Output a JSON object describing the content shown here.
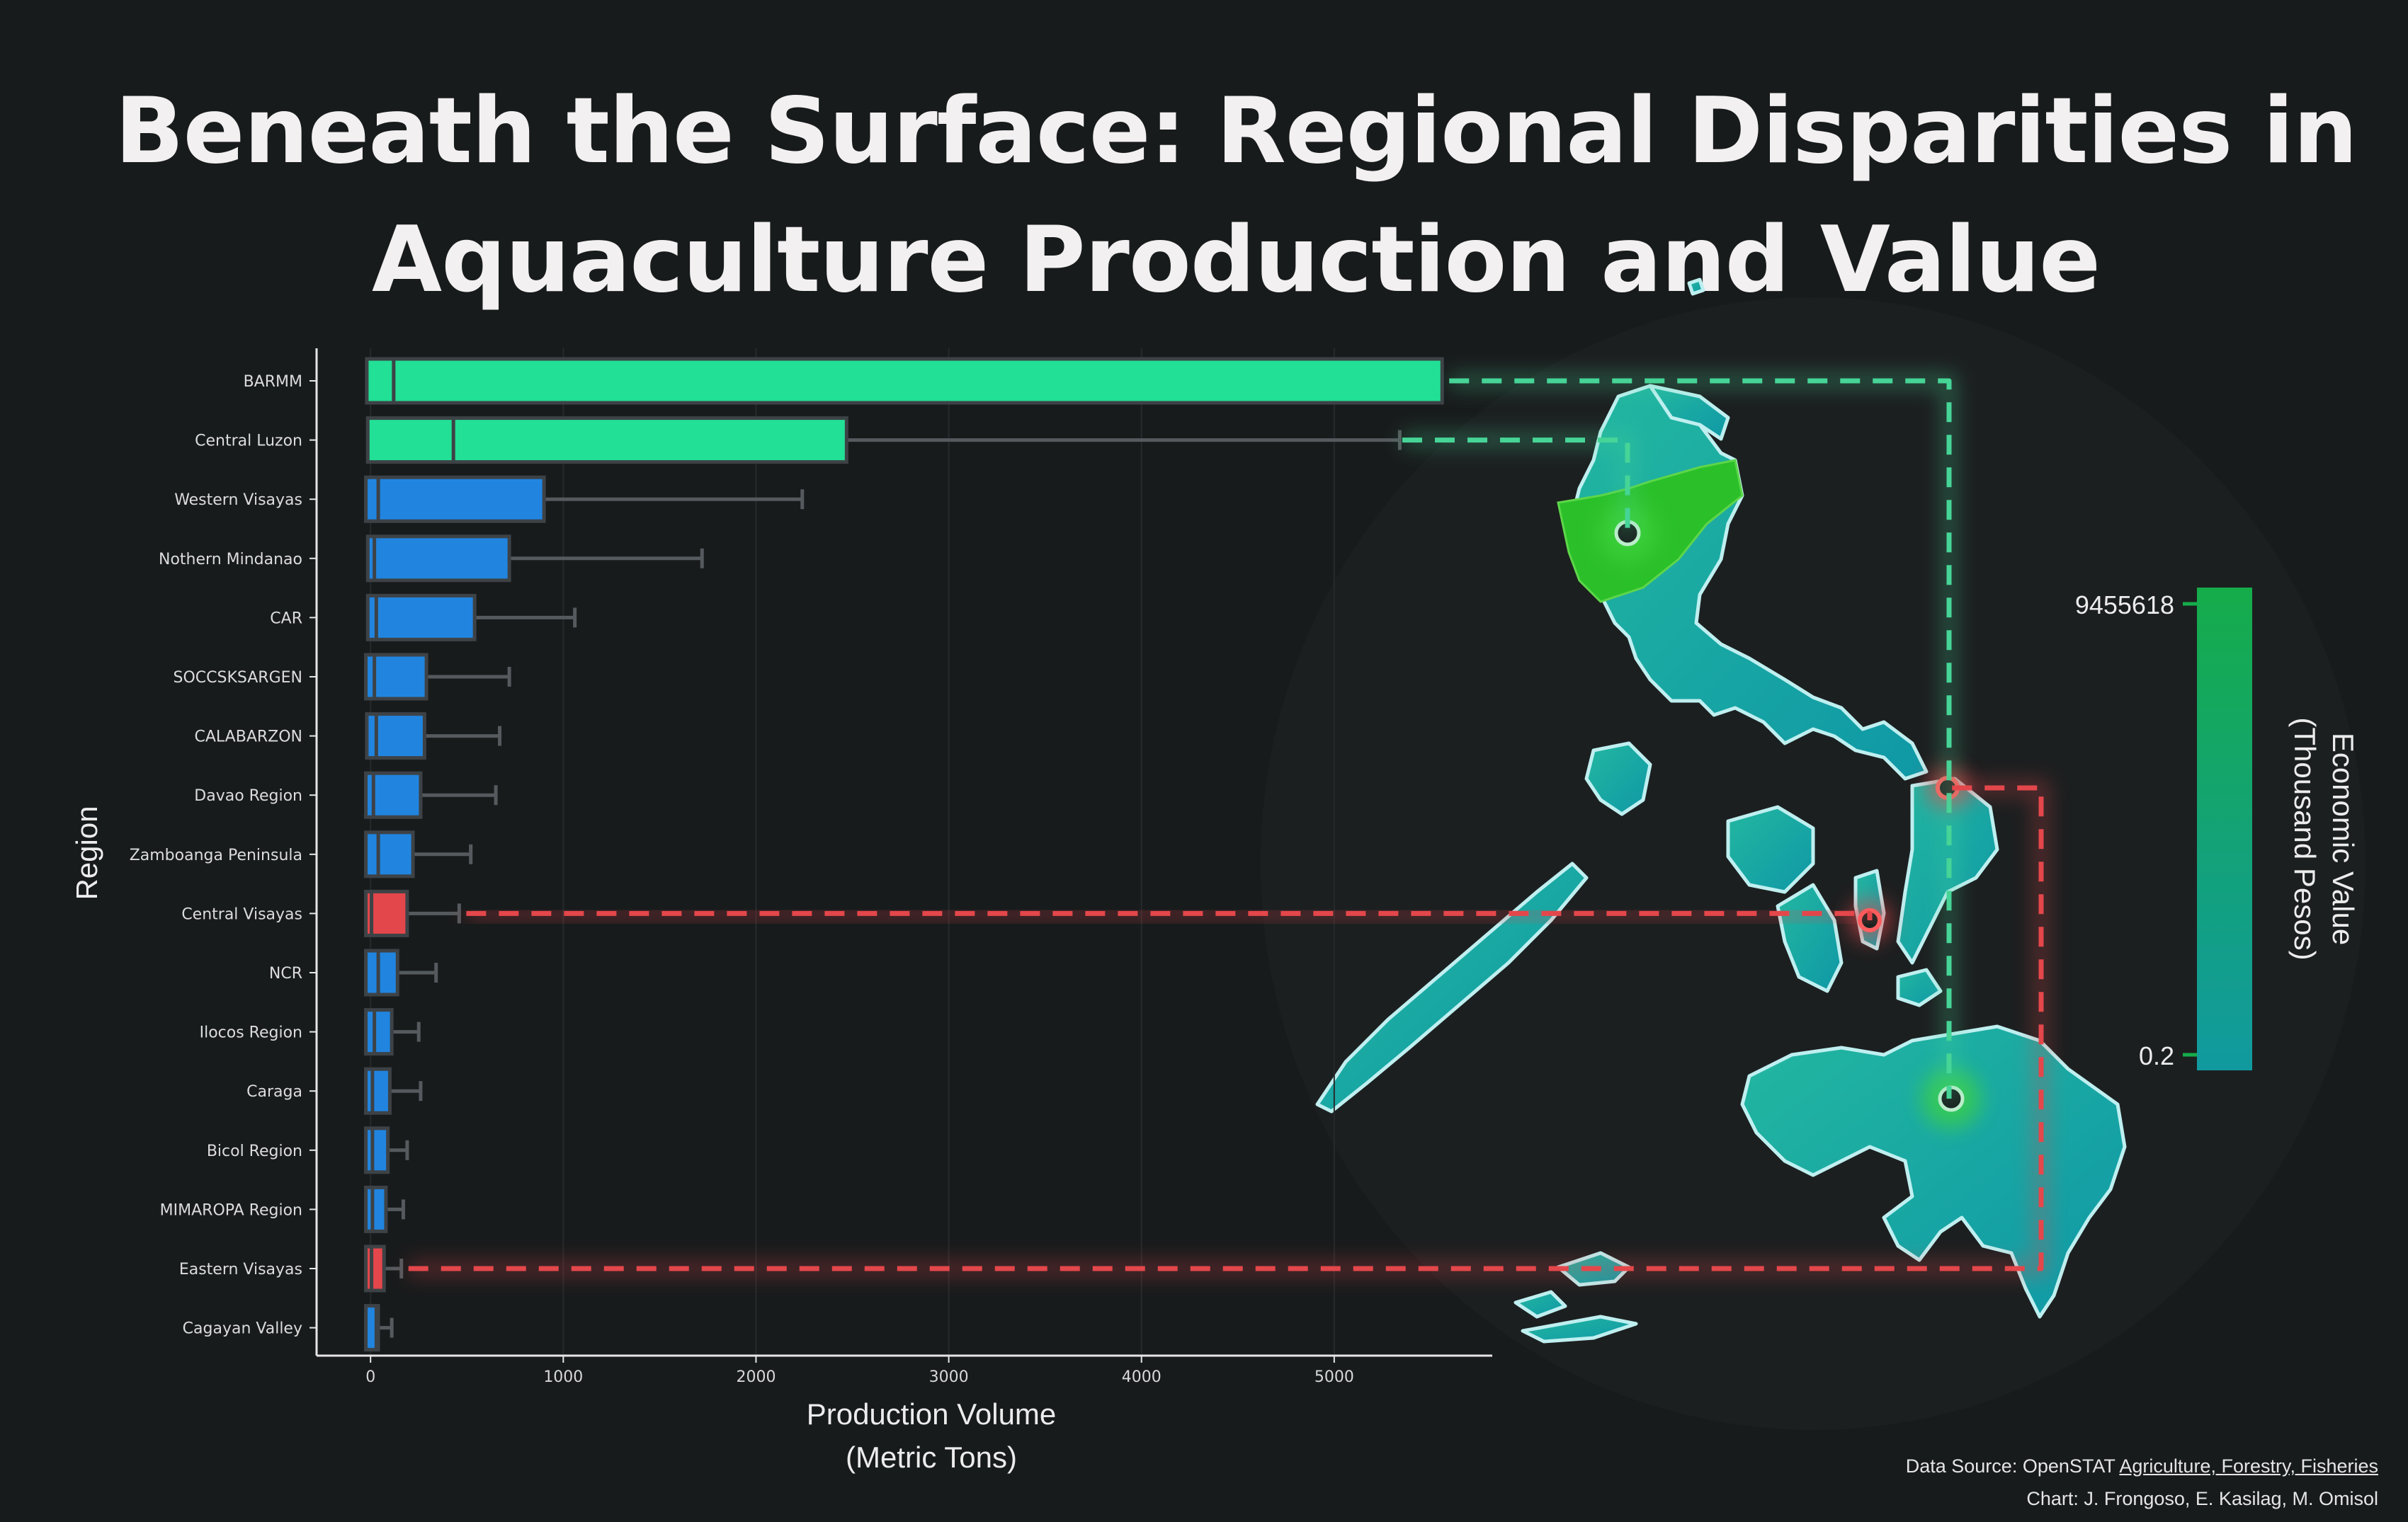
{
  "title": {
    "line1": "Beneath the Surface: Regional Disparities in",
    "line2": "Aquaculture Production and Value"
  },
  "colors": {
    "background": "#181b1c",
    "bar_default": "#2185e0",
    "bar_top": "#22e096",
    "bar_bottom": "#e4474b",
    "whisker": "#555a5e",
    "colorbar_low": "#119a9f",
    "colorbar_high": "#15ac4a",
    "map_land": "#1aa5a8",
    "map_land_high": "#28b84c",
    "highlight_line_top": "#46d497",
    "highlight_line_bottom": "#e4474b"
  },
  "chart_data": {
    "type": "bar",
    "subtype": "horizontal box plot",
    "ylabel": "Region",
    "xlabel_line1": "Production Volume",
    "xlabel_line2": "(Metric Tons)",
    "xlim": [
      -280,
      5820
    ],
    "xticks": [
      0,
      1000,
      2000,
      3000,
      4000,
      5000
    ],
    "categories": [
      "BARMM",
      "Central Luzon",
      "Western Visayas",
      "Nothern Mindanao",
      "CAR",
      "SOCCSKSARGEN",
      "CALABARZON",
      "Davao Region",
      "Zamboanga Peninsula",
      "Central Visayas",
      "NCR",
      "Ilocos Region",
      "Caraga",
      "Bicol Region",
      "MIMAROPA Region",
      "Eastern Visayas",
      "Cagayan Valley"
    ],
    "series": [
      {
        "name": "q1",
        "values": [
          10,
          15,
          5,
          15,
          15,
          5,
          10,
          5,
          5,
          5,
          5,
          5,
          5,
          5,
          5,
          5,
          5
        ]
      },
      {
        "name": "median",
        "values": [
          120,
          430,
          40,
          20,
          30,
          20,
          30,
          15,
          40,
          5,
          40,
          20,
          10,
          10,
          10,
          5,
          30
        ]
      },
      {
        "name": "q3",
        "values": [
          5560,
          2470,
          900,
          720,
          540,
          290,
          280,
          260,
          220,
          190,
          140,
          110,
          100,
          90,
          80,
          70,
          40
        ]
      },
      {
        "name": "whisker_high",
        "values": [
          5560,
          5340,
          2240,
          1720,
          1060,
          720,
          670,
          650,
          520,
          460,
          340,
          250,
          260,
          190,
          170,
          160,
          110
        ]
      }
    ],
    "highlight": {
      "top": [
        "BARMM",
        "Central Luzon"
      ],
      "bottom": [
        "Central Visayas",
        "Eastern Visayas"
      ]
    },
    "colorbar": {
      "label_line1": "Economic Value",
      "label_line2": "(Thousand Pesos)",
      "max_label": "9455618",
      "min_label": "0.2"
    }
  },
  "credits": {
    "source_prefix": "Data Source: OpenSTAT ",
    "source_link": "Agriculture, Forestry, Fisheries",
    "authors": "Chart: J. Frongoso, E. Kasilag, M. Omisol"
  }
}
